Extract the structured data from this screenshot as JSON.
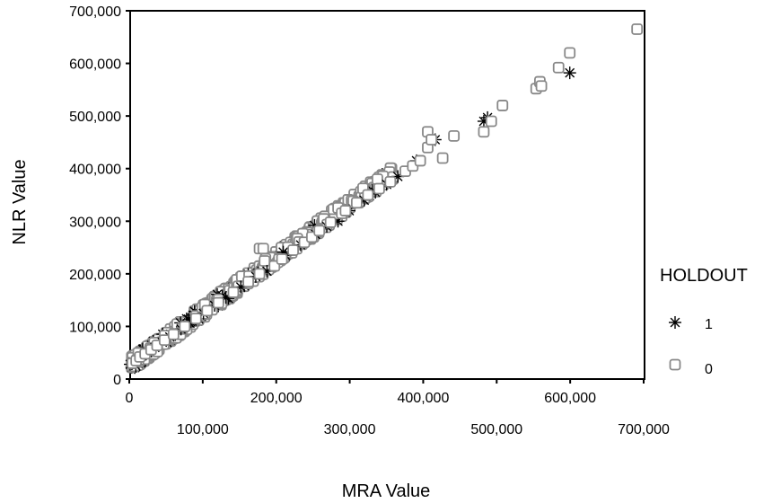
{
  "chart_data": {
    "type": "scatter",
    "xlabel": "MRA Value",
    "ylabel": "NLR Value",
    "xlim": [
      0,
      700000
    ],
    "ylim": [
      0,
      700000
    ],
    "x_ticks": [
      0,
      100000,
      200000,
      300000,
      400000,
      500000,
      600000,
      700000
    ],
    "x_tick_labels": [
      "0",
      "100,000",
      "200,000",
      "300,000",
      "400,000",
      "500,000",
      "600,000",
      "700,000"
    ],
    "y_ticks": [
      0,
      100000,
      200000,
      300000,
      400000,
      500000,
      600000,
      700000
    ],
    "y_tick_labels": [
      "0",
      "100,000",
      "200,000",
      "300,000",
      "400,000",
      "500,000",
      "600,000",
      "700,000"
    ],
    "grid": false,
    "legend": {
      "title": "HOLDOUT",
      "placement": "right"
    },
    "series": [
      {
        "name": "1",
        "marker": "asterisk",
        "color": "#000000",
        "points": [
          [
            12000,
            28000
          ],
          [
            16000,
            33000
          ],
          [
            22000,
            36000
          ],
          [
            28000,
            44000
          ],
          [
            35000,
            50000
          ],
          [
            45000,
            60000
          ],
          [
            55000,
            70000
          ],
          [
            65000,
            80000
          ],
          [
            80000,
            95000
          ],
          [
            95000,
            110000
          ],
          [
            110000,
            125000
          ],
          [
            125000,
            140000
          ],
          [
            140000,
            155000
          ],
          [
            160000,
            175000
          ],
          [
            180000,
            195000
          ],
          [
            195000,
            205000
          ],
          [
            220000,
            235000
          ],
          [
            240000,
            255000
          ],
          [
            260000,
            275000
          ],
          [
            275000,
            290000
          ],
          [
            290000,
            300000
          ],
          [
            305000,
            320000
          ],
          [
            325000,
            340000
          ],
          [
            340000,
            355000
          ],
          [
            355000,
            370000
          ],
          [
            370000,
            385000
          ],
          [
            395000,
            415000
          ],
          [
            420000,
            455000
          ],
          [
            485000,
            490000
          ],
          [
            490000,
            497000
          ],
          [
            600000,
            582000
          ]
        ]
      },
      {
        "name": "0",
        "marker": "square",
        "color": "#888888",
        "points": [
          [
            15000,
            30000
          ],
          [
            20000,
            35000
          ],
          [
            25000,
            42000
          ],
          [
            32000,
            48000
          ],
          [
            40000,
            56000
          ],
          [
            48000,
            64000
          ],
          [
            58000,
            74000
          ],
          [
            70000,
            85000
          ],
          [
            85000,
            100000
          ],
          [
            100000,
            115000
          ],
          [
            115000,
            130000
          ],
          [
            130000,
            145000
          ],
          [
            150000,
            165000
          ],
          [
            170000,
            185000
          ],
          [
            185000,
            200000
          ],
          [
            185000,
            248000
          ],
          [
            190000,
            248000
          ],
          [
            205000,
            215000
          ],
          [
            215000,
            228000
          ],
          [
            230000,
            245000
          ],
          [
            245000,
            260000
          ],
          [
            255000,
            270000
          ],
          [
            265000,
            282000
          ],
          [
            280000,
            298000
          ],
          [
            295000,
            315000
          ],
          [
            300000,
            320000
          ],
          [
            315000,
            335000
          ],
          [
            330000,
            350000
          ],
          [
            345000,
            362000
          ],
          [
            360000,
            375000
          ],
          [
            380000,
            395000
          ],
          [
            390000,
            405000
          ],
          [
            400000,
            415000
          ],
          [
            410000,
            470000
          ],
          [
            410000,
            440000
          ],
          [
            415000,
            455000
          ],
          [
            430000,
            420000
          ],
          [
            445000,
            462000
          ],
          [
            485000,
            470000
          ],
          [
            495000,
            490000
          ],
          [
            510000,
            520000
          ],
          [
            555000,
            552000
          ],
          [
            560000,
            565000
          ],
          [
            562000,
            557000
          ],
          [
            585000,
            592000
          ],
          [
            600000,
            620000
          ],
          [
            690000,
            665000
          ]
        ]
      }
    ]
  }
}
